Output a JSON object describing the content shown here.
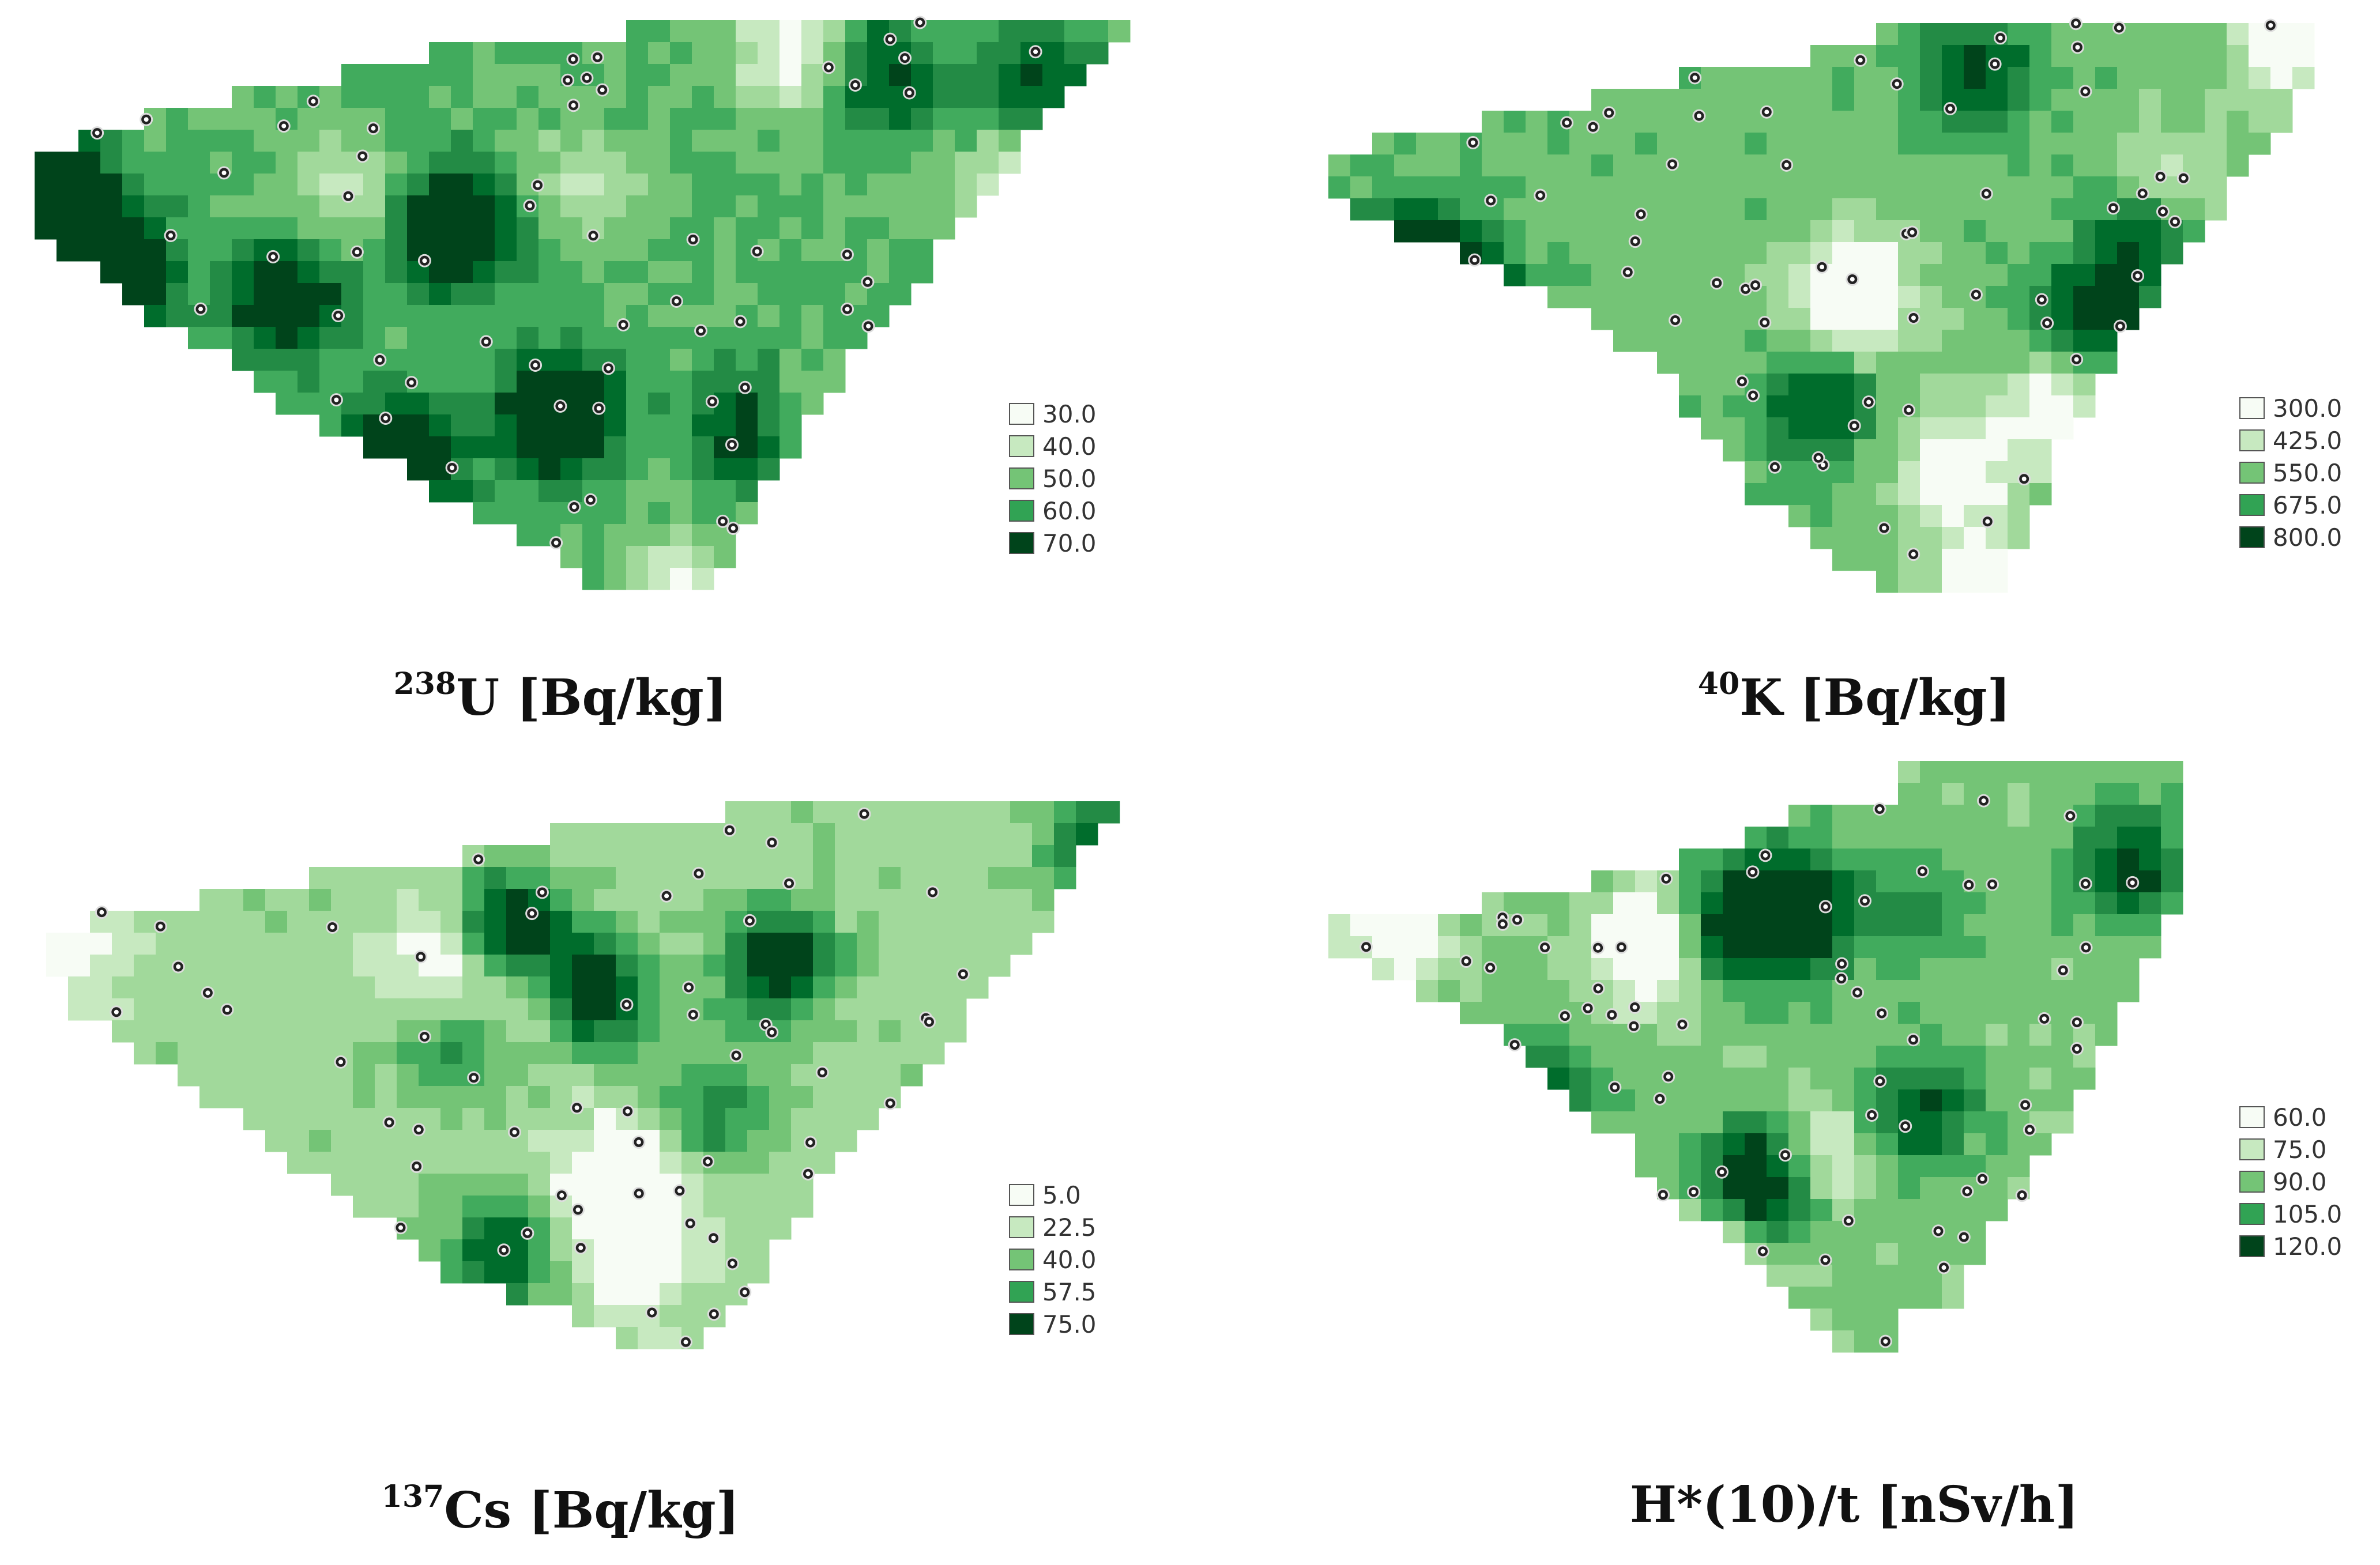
{
  "maps": [
    {
      "id": "u238",
      "isotope": "238",
      "symbol": "U",
      "unit": "[Bq/kg]",
      "legend": [
        {
          "label": "30.0",
          "color": "#f7fcf5"
        },
        {
          "label": "40.0",
          "color": "#c7e9c0"
        },
        {
          "label": "50.0",
          "color": "#74c476"
        },
        {
          "label": "60.0",
          "color": "#31a354"
        },
        {
          "label": "70.0",
          "color": "#00441b"
        }
      ]
    },
    {
      "id": "k40",
      "isotope": "40",
      "symbol": "K",
      "unit": "[Bq/kg]",
      "legend": [
        {
          "label": "300.0",
          "color": "#f7fcf5"
        },
        {
          "label": "425.0",
          "color": "#c7e9c0"
        },
        {
          "label": "550.0",
          "color": "#74c476"
        },
        {
          "label": "675.0",
          "color": "#31a354"
        },
        {
          "label": "800.0",
          "color": "#00441b"
        }
      ]
    },
    {
      "id": "cs137",
      "isotope": "137",
      "symbol": "Cs",
      "unit": "[Bq/kg]",
      "legend": [
        {
          "label": "5.0",
          "color": "#f7fcf5"
        },
        {
          "label": "22.5",
          "color": "#c7e9c0"
        },
        {
          "label": "40.0",
          "color": "#74c476"
        },
        {
          "label": "57.5",
          "color": "#31a354"
        },
        {
          "label": "75.0",
          "color": "#00441b"
        }
      ]
    },
    {
      "id": "hdose",
      "isotope": "",
      "symbol": "H*(10)/t",
      "unit": "[nSv/h]",
      "legend": [
        {
          "label": "60.0",
          "color": "#f7fcf5"
        },
        {
          "label": "75.0",
          "color": "#c7e9c0"
        },
        {
          "label": "90.0",
          "color": "#74c476"
        },
        {
          "label": "105.0",
          "color": "#31a354"
        },
        {
          "label": "120.0",
          "color": "#00441b"
        }
      ]
    }
  ]
}
